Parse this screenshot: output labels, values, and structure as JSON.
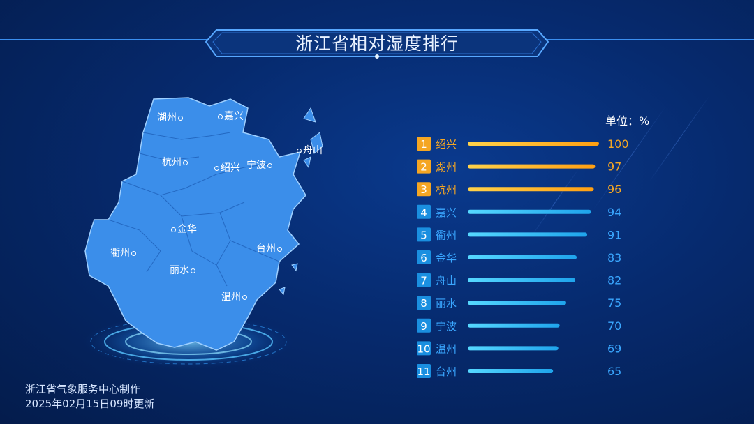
{
  "title": "浙江省相对湿度排行",
  "unit_label": "单位：%",
  "footer": {
    "line1": "浙江省气象服务中心制作",
    "line2": "2025年02月15日09时更新"
  },
  "map_labels": [
    "湖州",
    "嘉兴",
    "杭州",
    "绍兴",
    "宁波",
    "舟山",
    "金华",
    "衢州",
    "台州",
    "丽水",
    "温州"
  ],
  "colors": {
    "top_rank_badge": "#f5a623",
    "top_rank_bar": "#ffb627",
    "top_rank_text": "#f5a623",
    "rank_badge": "#1a8fe0",
    "rank_bar": "#35c6ff",
    "rank_text": "#3aa7ff",
    "map_fill": "#3b8eea"
  },
  "chart_data": {
    "type": "bar",
    "orientation": "horizontal",
    "ranks": [
      "1",
      "2",
      "3",
      "4",
      "5",
      "6",
      "7",
      "8",
      "9",
      "10",
      "11"
    ],
    "categories": [
      "绍兴",
      "湖州",
      "杭州",
      "嘉兴",
      "衢州",
      "金华",
      "舟山",
      "丽水",
      "宁波",
      "温州",
      "台州"
    ],
    "values": [
      100,
      97,
      96,
      94,
      91,
      83,
      82,
      75,
      70,
      69,
      65
    ],
    "unit": "%",
    "highlight_top": 3
  }
}
